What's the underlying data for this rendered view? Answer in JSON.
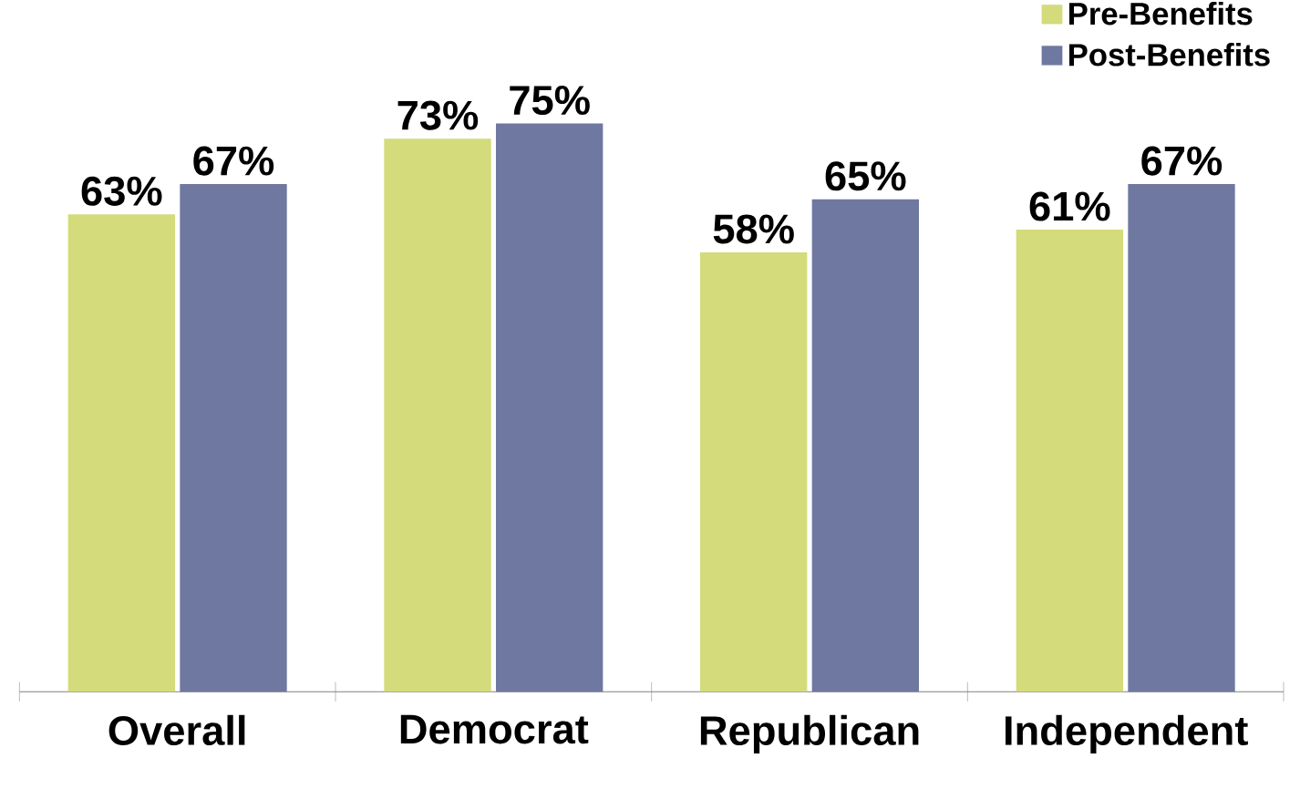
{
  "chart_data": {
    "type": "bar",
    "categories": [
      "Overall",
      "Democrat",
      "Republican",
      "Independent"
    ],
    "series": [
      {
        "name": "Pre-Benefits",
        "color": "#d3db7b",
        "values": [
          63,
          73,
          58,
          61
        ],
        "value_labels": [
          "63%",
          "73%",
          "58%",
          "61%"
        ]
      },
      {
        "name": "Post-Benefits",
        "color": "#6f78a0",
        "values": [
          67,
          75,
          65,
          67
        ],
        "value_labels": [
          "67%",
          "75%",
          "65%",
          "67%"
        ]
      }
    ],
    "legend": "top right"
  }
}
